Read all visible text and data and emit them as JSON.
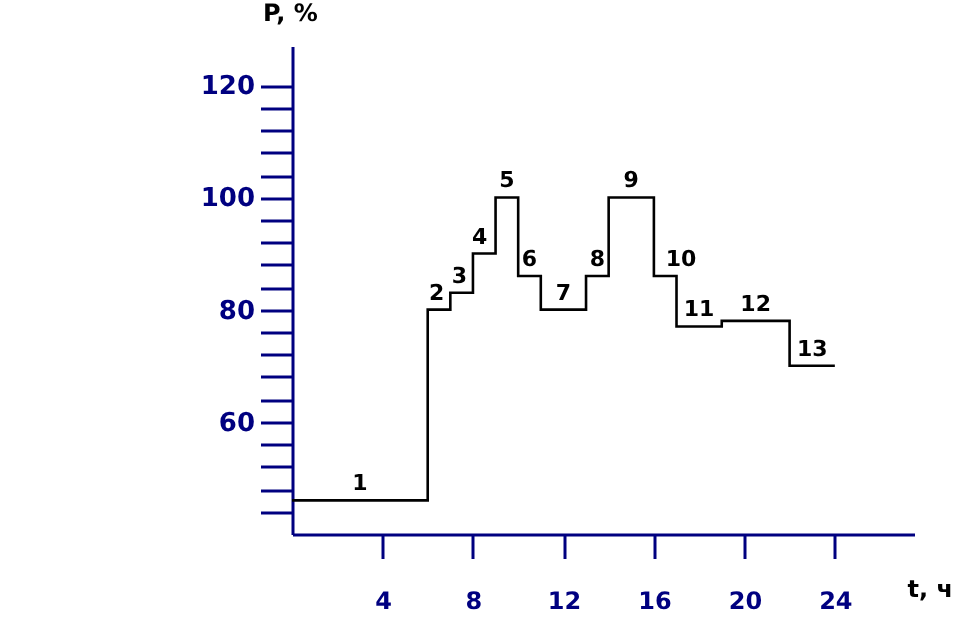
{
  "chart_data": {
    "type": "step",
    "xlabel": "t, ч",
    "ylabel": "P, %",
    "x": [
      0,
      6,
      7,
      8,
      9,
      10,
      11,
      13,
      14,
      16,
      17,
      19,
      22,
      24
    ],
    "series": [
      {
        "color": "#000000",
        "values": [
          46,
          80,
          83,
          90,
          100,
          86,
          80,
          86,
          100,
          86,
          77,
          78,
          70,
          70
        ]
      }
    ],
    "xlim": [
      0,
      27.5
    ],
    "ylim": [
      40,
      127
    ],
    "xticks": [
      4,
      8,
      12,
      16,
      20,
      24
    ],
    "yticks": [
      {
        "value": 44,
        "label": null
      },
      {
        "value": 48,
        "label": null
      },
      {
        "value": 52,
        "label": null
      },
      {
        "value": 56,
        "label": null
      },
      60,
      {
        "value": 64,
        "label": null
      },
      {
        "value": 68,
        "label": null
      },
      {
        "value": 72,
        "label": null
      },
      {
        "value": 76,
        "label": null
      },
      80,
      {
        "value": 84,
        "label": null
      },
      {
        "value": 88,
        "label": null
      },
      {
        "value": 92,
        "label": null
      },
      {
        "value": 96,
        "label": null
      },
      100,
      {
        "value": 104,
        "label": null
      },
      {
        "value": 108,
        "label": null
      },
      {
        "value": 112,
        "label": null
      },
      {
        "value": 116,
        "label": null
      },
      120
    ],
    "annotations": [
      {
        "text": "1",
        "x": 3,
        "y": 46
      },
      {
        "text": "2",
        "x": 6.4,
        "y": 80
      },
      {
        "text": "3",
        "x": 7.4,
        "y": 83
      },
      {
        "text": "4",
        "x": 8.3,
        "y": 90
      },
      {
        "text": "5",
        "x": 9.5,
        "y": 100
      },
      {
        "text": "6",
        "x": 10.5,
        "y": 86
      },
      {
        "text": "7",
        "x": 12,
        "y": 80
      },
      {
        "text": "8",
        "x": 13.5,
        "y": 86
      },
      {
        "text": "9",
        "x": 15,
        "y": 100
      },
      {
        "text": "10",
        "x": 17.2,
        "y": 86
      },
      {
        "text": "11",
        "x": 18,
        "y": 77
      },
      {
        "text": "12",
        "x": 20.5,
        "y": 78
      },
      {
        "text": "13",
        "x": 23,
        "y": 70
      }
    ],
    "grid": false
  }
}
